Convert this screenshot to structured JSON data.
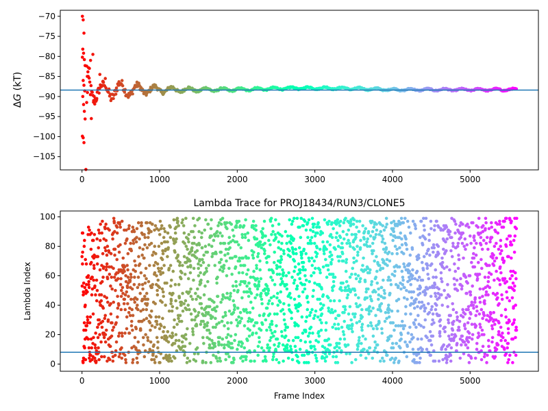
{
  "chart_data": [
    {
      "type": "scatter",
      "ylabel_prefix": "Δ",
      "ylabel_var": "G",
      "ylabel_suffix": " (kT)",
      "xlim": [
        -280,
        5880
      ],
      "ylim": [
        -108.3,
        -68.5
      ],
      "x_ticks": [
        0,
        1000,
        2000,
        3000,
        4000,
        5000
      ],
      "y_ticks": [
        -105,
        -100,
        -95,
        -90,
        -85,
        -80,
        -75,
        -70
      ],
      "y_tick_labels": [
        "−105",
        "−100",
        "−95",
        "−90",
        "−85",
        "−80",
        "−75",
        "−70"
      ],
      "hline": -88.4,
      "hline_color": "#1f77b4",
      "colormap": "rainbow",
      "converged_value": -88.3,
      "n_frames": 5600,
      "early_points": [
        {
          "x": 5,
          "y": -70
        },
        {
          "x": 15,
          "y": -70.9
        },
        {
          "x": 25,
          "y": -74.2
        },
        {
          "x": 10,
          "y": -78.2
        },
        {
          "x": 20,
          "y": -79.2
        },
        {
          "x": 5,
          "y": -80.2
        },
        {
          "x": 30,
          "y": -80.8
        },
        {
          "x": 40,
          "y": -82.3
        },
        {
          "x": 15,
          "y": -86
        },
        {
          "x": 25,
          "y": -87.2
        },
        {
          "x": 35,
          "y": -88.6
        },
        {
          "x": 10,
          "y": -90.0
        },
        {
          "x": 20,
          "y": -92.0
        },
        {
          "x": 30,
          "y": -93.7
        },
        {
          "x": 40,
          "y": -95.6
        },
        {
          "x": 5,
          "y": -99.9
        },
        {
          "x": 15,
          "y": -100.3
        },
        {
          "x": 25,
          "y": -101.5
        },
        {
          "x": 50,
          "y": -108.2
        },
        {
          "x": 60,
          "y": -91.5
        },
        {
          "x": 70,
          "y": -89.0
        },
        {
          "x": 80,
          "y": -85.0
        },
        {
          "x": 95,
          "y": -83.0
        },
        {
          "x": 110,
          "y": -81.0
        },
        {
          "x": 140,
          "y": -79.5
        },
        {
          "x": 120,
          "y": -95.5
        },
        {
          "x": 150,
          "y": -91.0
        },
        {
          "x": 190,
          "y": -90.5
        },
        {
          "x": 230,
          "y": -84.5
        },
        {
          "x": 270,
          "y": -86.2
        }
      ]
    },
    {
      "type": "scatter",
      "title": "Lambda Trace for PROJ18434/RUN3/CLONE5",
      "xlabel": "Frame Index",
      "ylabel": "Lambda Index",
      "xlim": [
        -280,
        5880
      ],
      "ylim": [
        -4.9,
        104.0
      ],
      "x_ticks": [
        0,
        1000,
        2000,
        3000,
        4000,
        5000
      ],
      "y_ticks": [
        0,
        20,
        40,
        60,
        80,
        100
      ],
      "hline": 8,
      "hline_color": "#1f77b4",
      "colormap": "rainbow",
      "n_frames": 5600,
      "lambda_range": [
        1,
        99
      ]
    }
  ]
}
